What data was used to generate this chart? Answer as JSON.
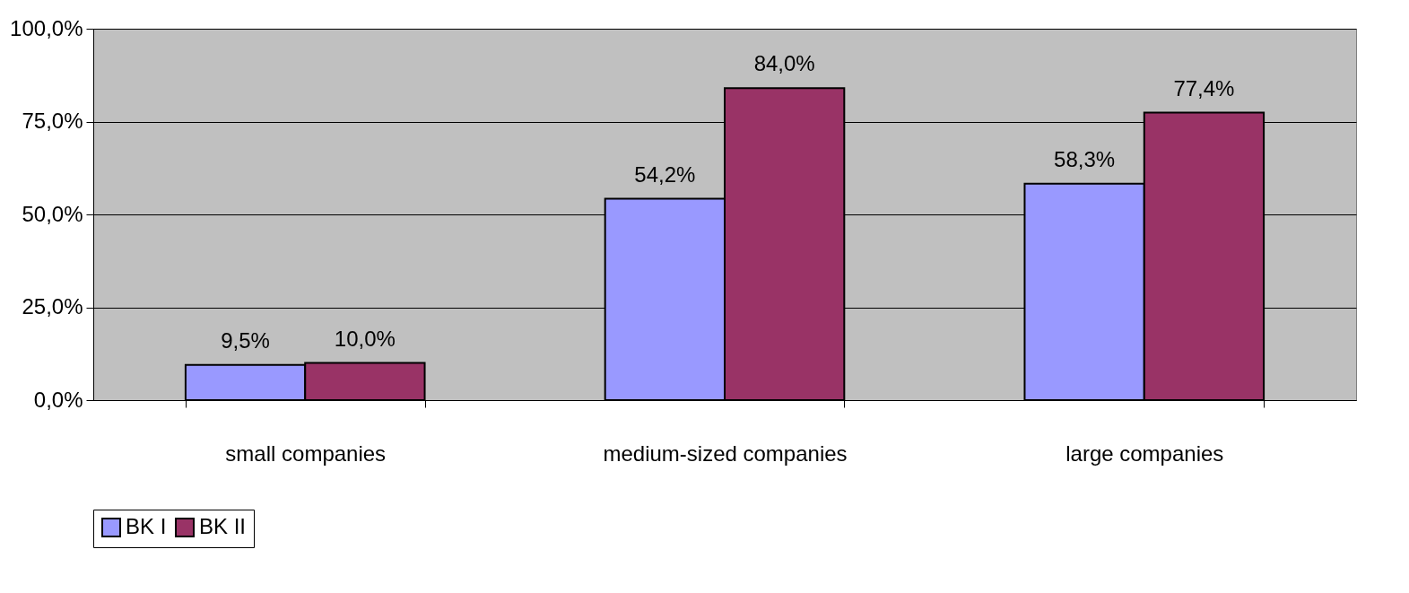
{
  "chart_data": {
    "type": "bar",
    "categories": [
      "small companies",
      "medium-sized companies",
      "large companies"
    ],
    "series": [
      {
        "name": "BK I",
        "color": "#9999ff",
        "values": [
          9.5,
          54.2,
          58.3
        ],
        "value_labels": [
          "9,5%",
          "54,2%",
          "58,3%"
        ]
      },
      {
        "name": "BK II",
        "color": "#993366",
        "values": [
          10.0,
          84.0,
          77.4
        ],
        "value_labels": [
          "10,0%",
          "84,0%",
          "77,4%"
        ]
      }
    ],
    "ylim": [
      0,
      100
    ],
    "yticks": [
      {
        "value": 0,
        "label": "0,0%"
      },
      {
        "value": 25,
        "label": "25,0%"
      },
      {
        "value": 50,
        "label": "50,0%"
      },
      {
        "value": 75,
        "label": "75,0%"
      },
      {
        "value": 100,
        "label": "100,0%"
      }
    ],
    "grid": "y",
    "legend": "bottom"
  }
}
